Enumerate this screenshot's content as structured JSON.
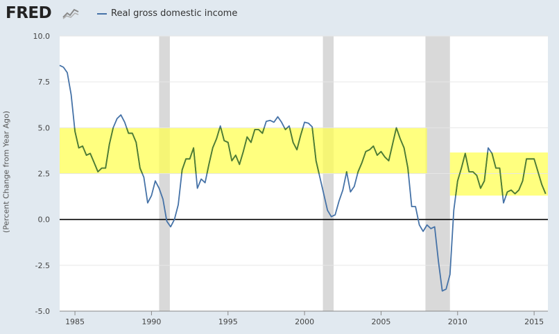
{
  "brand": {
    "logo_text": "FRED",
    "logo_icon": "fred-graph-icon"
  },
  "legend": {
    "label": "Real gross domestic income",
    "color": "#4572a7"
  },
  "chart_data": {
    "type": "line",
    "title": "",
    "xlabel": "",
    "ylabel": "(Percent Change from Year Ago)",
    "xlim": [
      1984.0,
      2015.9
    ],
    "ylim": [
      -5.0,
      10.0
    ],
    "x_ticks": [
      1985,
      1990,
      1995,
      2000,
      2005,
      2010,
      2015
    ],
    "x_tick_labels": [
      "1985",
      "1990",
      "1995",
      "2000",
      "2005",
      "2010",
      "2015"
    ],
    "y_ticks": [
      -5.0,
      -2.5,
      0.0,
      2.5,
      5.0,
      7.5,
      10.0
    ],
    "y_tick_labels": [
      "-5.0",
      "-2.5",
      "0.0",
      "2.5",
      "5.0",
      "7.5",
      "10.0"
    ],
    "grid": true,
    "zero_line": true,
    "line_color": "#4572a7",
    "line_color_in_band": "#4f7d2e",
    "recession_color": "#d9d9d9",
    "highlight_color": "#ffff4d",
    "recessions": [
      {
        "start": 1990.5,
        "end": 1991.2
      },
      {
        "start": 2001.2,
        "end": 2001.9
      },
      {
        "start": 2007.9,
        "end": 2009.5
      }
    ],
    "highlights": [
      {
        "x0": 1984.0,
        "x1": 2008.0,
        "y0": 2.5,
        "y1": 5.0
      },
      {
        "x0": 2009.5,
        "x1": 2015.9,
        "y0": 1.3,
        "y1": 3.65
      }
    ],
    "series": [
      {
        "name": "Real gross domestic income",
        "x": [
          1984.0,
          1984.25,
          1984.5,
          1984.75,
          1985.0,
          1985.25,
          1985.5,
          1985.75,
          1986.0,
          1986.25,
          1986.5,
          1986.75,
          1987.0,
          1987.25,
          1987.5,
          1987.75,
          1988.0,
          1988.25,
          1988.5,
          1988.75,
          1989.0,
          1989.25,
          1989.5,
          1989.75,
          1990.0,
          1990.25,
          1990.5,
          1990.75,
          1991.0,
          1991.25,
          1991.5,
          1991.75,
          1992.0,
          1992.25,
          1992.5,
          1992.75,
          1993.0,
          1993.25,
          1993.5,
          1993.75,
          1994.0,
          1994.25,
          1994.5,
          1994.75,
          1995.0,
          1995.25,
          1995.5,
          1995.75,
          1996.0,
          1996.25,
          1996.5,
          1996.75,
          1997.0,
          1997.25,
          1997.5,
          1997.75,
          1998.0,
          1998.25,
          1998.5,
          1998.75,
          1999.0,
          1999.25,
          1999.5,
          1999.75,
          2000.0,
          2000.25,
          2000.5,
          2000.75,
          2001.0,
          2001.25,
          2001.5,
          2001.75,
          2002.0,
          2002.25,
          2002.5,
          2002.75,
          2003.0,
          2003.25,
          2003.5,
          2003.75,
          2004.0,
          2004.25,
          2004.5,
          2004.75,
          2005.0,
          2005.25,
          2005.5,
          2005.75,
          2006.0,
          2006.25,
          2006.5,
          2006.75,
          2007.0,
          2007.25,
          2007.5,
          2007.75,
          2008.0,
          2008.25,
          2008.5,
          2008.75,
          2009.0,
          2009.25,
          2009.5,
          2009.75,
          2010.0,
          2010.25,
          2010.5,
          2010.75,
          2011.0,
          2011.25,
          2011.5,
          2011.75,
          2012.0,
          2012.25,
          2012.5,
          2012.75,
          2013.0,
          2013.25,
          2013.5,
          2013.75,
          2014.0,
          2014.25,
          2014.5,
          2014.75,
          2015.0,
          2015.25,
          2015.5,
          2015.75
        ],
        "y": [
          8.4,
          8.3,
          8.0,
          6.8,
          4.8,
          3.9,
          4.0,
          3.5,
          3.6,
          3.1,
          2.6,
          2.8,
          2.8,
          4.1,
          5.0,
          5.5,
          5.7,
          5.3,
          4.7,
          4.7,
          4.2,
          2.8,
          2.3,
          0.9,
          1.3,
          2.1,
          1.7,
          1.1,
          -0.1,
          -0.4,
          0.0,
          0.8,
          2.7,
          3.3,
          3.3,
          3.9,
          1.7,
          2.2,
          2.0,
          3.0,
          3.9,
          4.4,
          5.1,
          4.3,
          4.2,
          3.2,
          3.5,
          3.0,
          3.7,
          4.5,
          4.2,
          4.9,
          4.9,
          4.7,
          5.35,
          5.4,
          5.3,
          5.6,
          5.3,
          4.9,
          5.1,
          4.2,
          3.8,
          4.6,
          5.3,
          5.25,
          5.05,
          3.2,
          2.3,
          1.4,
          0.5,
          0.15,
          0.25,
          1.0,
          1.6,
          2.6,
          1.5,
          1.8,
          2.6,
          3.1,
          3.7,
          3.8,
          4.0,
          3.5,
          3.7,
          3.4,
          3.2,
          4.1,
          5.0,
          4.4,
          3.9,
          2.8,
          0.7,
          0.7,
          -0.3,
          -0.65,
          -0.3,
          -0.5,
          -0.4,
          -2.3,
          -3.9,
          -3.8,
          -3.0,
          0.5,
          2.1,
          2.8,
          3.6,
          2.6,
          2.6,
          2.4,
          1.7,
          2.1,
          3.9,
          3.6,
          2.8,
          2.8,
          0.9,
          1.5,
          1.6,
          1.4,
          1.6,
          2.1,
          3.3,
          3.3,
          3.3,
          2.6,
          1.9,
          1.4
        ]
      }
    ]
  }
}
